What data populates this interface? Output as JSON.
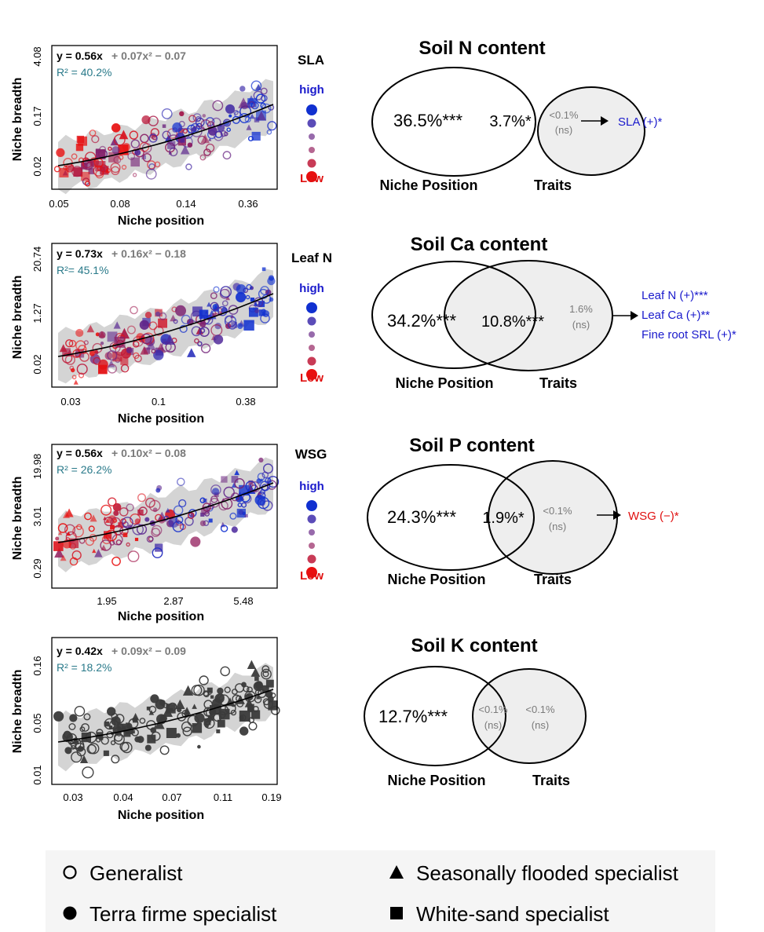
{
  "panels": [
    {
      "id": "sla",
      "equation_a": "y = 0.56x",
      "equation_b": "+ 0.07x² − 0.07",
      "r2": "R² = 40.2%",
      "ylabel": "Niche breadth",
      "xlabel": "Niche position",
      "yticks": [
        "4.08",
        "0.17",
        "0.02"
      ],
      "xticks": [
        "0.05",
        "0.08",
        "0.14",
        "0.36"
      ],
      "trait_label": "SLA",
      "scale_high": "high",
      "scale_low": "Low",
      "venn": {
        "title": "Soil N content",
        "left_value": "36.5%***",
        "overlap_value": "3.7%*",
        "right_value": "<0.1%",
        "right_sig": "(ns)",
        "left_label": "Niche Position",
        "right_label": "Traits",
        "effects": [
          "SLA (+)*"
        ],
        "effect_color": "#1a1acc"
      }
    },
    {
      "id": "leafn",
      "equation_a": "y = 0.73x",
      "equation_b": "+ 0.16x² − 0.18",
      "r2": "R²= 45.1%",
      "ylabel": "Niche breadth",
      "xlabel": "Niche position",
      "yticks": [
        "20.74",
        "1.27",
        "0.02"
      ],
      "xticks": [
        "0.03",
        "0.1",
        "0.38"
      ],
      "trait_label": "Leaf N",
      "scale_high": "high",
      "scale_low": "Low",
      "venn": {
        "title": "Soil Ca content",
        "left_value": "34.2%***",
        "overlap_value": "10.8%***",
        "right_value": "1.6%",
        "right_sig": "(ns)",
        "left_label": "Niche Position",
        "right_label": "Traits",
        "effects": [
          "Leaf N (+)***",
          "Leaf Ca (+)**",
          "Fine root SRL (+)*"
        ],
        "effect_color": "#1a1acc"
      }
    },
    {
      "id": "wsg",
      "equation_a": "y = 0.56x",
      "equation_b": "+ 0.10x² − 0.08",
      "r2": "R² = 26.2%",
      "ylabel": "Niche breadth",
      "xlabel": "Niche position",
      "yticks": [
        "19.98",
        "3.01",
        "0.29"
      ],
      "xticks": [
        "1.95",
        "2.87",
        "5.48"
      ],
      "trait_label": "WSG",
      "scale_high": "high",
      "scale_low": "Low",
      "venn": {
        "title": "Soil P content",
        "left_value": "24.3%***",
        "overlap_value": "1.9%*",
        "right_value": "<0.1%",
        "right_sig": "(ns)",
        "left_label": "Niche Position",
        "right_label": "Traits",
        "effects": [
          "WSG (−)*"
        ],
        "effect_color": "#e01010"
      }
    },
    {
      "id": "k",
      "equation_a": "y = 0.42x",
      "equation_b": "+ 0.09x² − 0.09",
      "r2": "R² = 18.2%",
      "ylabel": "Niche breadth",
      "xlabel": "Niche position",
      "yticks": [
        "0.16",
        "0.05",
        "0.01"
      ],
      "xticks": [
        "0.03",
        "0.04",
        "0.07",
        "0.11",
        "0.19"
      ],
      "trait_label": "",
      "scale_high": "",
      "scale_low": "",
      "venn": {
        "title": "Soil K content",
        "left_value": "12.7%***",
        "overlap_value": "<0.1%",
        "overlap_sig": "(ns)",
        "right_value": "<0.1%",
        "right_sig": "(ns)",
        "left_label": "Niche Position",
        "right_label": "Traits",
        "effects": [],
        "effect_color": "#1a1acc"
      }
    }
  ],
  "legend": {
    "generalist": "Generalist",
    "terra_firme": "Terra firme specialist",
    "seasonally_flooded": "Seasonally flooded specialist",
    "white_sand": "White-sand specialist"
  },
  "colors": {
    "high": "#1030d0",
    "low": "#e81010",
    "band": "#d4d4d4",
    "r2": "#2a7a8a",
    "equation_grey": "#7a7a7a",
    "ns_grey": "#7a7a7a",
    "venn_fill": "#eeeeee"
  },
  "chart_data": [
    {
      "type": "scatter",
      "ylabel": "Niche breadth",
      "xlabel": "Niche position",
      "x_ticks": [
        "0.05",
        "0.08",
        "0.14",
        "0.36"
      ],
      "y_ticks": [
        "0.02",
        "0.17",
        "4.08"
      ],
      "series": [
        {
          "name": "SLA",
          "color_scale": [
            "Low",
            "high"
          ]
        }
      ],
      "fit": "quadratic",
      "r2_percent": 40.2
    },
    {
      "type": "scatter",
      "ylabel": "Niche breadth",
      "xlabel": "Niche position",
      "x_ticks": [
        "0.03",
        "0.1",
        "0.38"
      ],
      "y_ticks": [
        "0.02",
        "1.27",
        "20.74"
      ],
      "series": [
        {
          "name": "Leaf N",
          "color_scale": [
            "Low",
            "high"
          ]
        }
      ],
      "fit": "quadratic",
      "r2_percent": 45.1
    },
    {
      "type": "scatter",
      "ylabel": "Niche breadth",
      "xlabel": "Niche position",
      "x_ticks": [
        "1.95",
        "2.87",
        "5.48"
      ],
      "y_ticks": [
        "0.29",
        "3.01",
        "19.98"
      ],
      "series": [
        {
          "name": "WSG",
          "color_scale": [
            "Low",
            "high"
          ]
        }
      ],
      "fit": "quadratic",
      "r2_percent": 26.2
    },
    {
      "type": "scatter",
      "ylabel": "Niche breadth",
      "xlabel": "Niche position",
      "x_ticks": [
        "0.03",
        "0.04",
        "0.07",
        "0.11",
        "0.19"
      ],
      "y_ticks": [
        "0.01",
        "0.05",
        "0.16"
      ],
      "fit": "quadratic",
      "r2_percent": 18.2
    }
  ]
}
